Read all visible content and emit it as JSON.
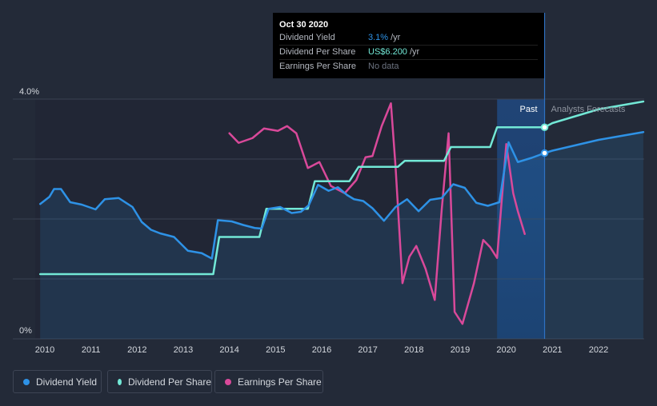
{
  "tooltip": {
    "date": "Oct 30 2020",
    "rows": [
      {
        "label": "Dividend Yield",
        "value": "3.1%",
        "unit": "/yr"
      },
      {
        "label": "Dividend Per Share",
        "value": "US$6.200",
        "unit": "/yr"
      },
      {
        "label": "Earnings Per Share",
        "value": "No data",
        "unit": ""
      }
    ]
  },
  "legend": [
    {
      "label": "Dividend Yield",
      "color": "#2e92e6"
    },
    {
      "label": "Dividend Per Share",
      "color": "#72e8d6"
    },
    {
      "label": "Earnings Per Share",
      "color": "#d9499a"
    }
  ],
  "chart_data": {
    "type": "line",
    "y_tick_labels": [
      "4.0%",
      "0%"
    ],
    "x_tick_labels": [
      "2010",
      "2011",
      "2012",
      "2013",
      "2014",
      "2015",
      "2016",
      "2017",
      "2018",
      "2019",
      "2020",
      "2021",
      "2022"
    ],
    "region_labels": {
      "past": "Past",
      "forecast": "Analysts Forecasts"
    },
    "ylim": [
      0,
      4.0
    ],
    "grid": true,
    "legend_position": "bottom-left",
    "colors": {
      "yield": "#2e92e6",
      "dps": "#72e8d6",
      "eps": "#d9499a"
    },
    "series": [
      {
        "name": "Dividend Yield",
        "unit": "%",
        "points": [
          [
            2009.9,
            2.25
          ],
          [
            2010.1,
            2.37
          ],
          [
            2010.2,
            2.5
          ],
          [
            2010.35,
            2.5
          ],
          [
            2010.55,
            2.28
          ],
          [
            2010.8,
            2.24
          ],
          [
            2011.1,
            2.16
          ],
          [
            2011.3,
            2.33
          ],
          [
            2011.6,
            2.35
          ],
          [
            2011.9,
            2.2
          ],
          [
            2012.1,
            1.95
          ],
          [
            2012.3,
            1.82
          ],
          [
            2012.5,
            1.76
          ],
          [
            2012.8,
            1.7
          ],
          [
            2013.1,
            1.47
          ],
          [
            2013.4,
            1.43
          ],
          [
            2013.62,
            1.34
          ],
          [
            2013.75,
            1.98
          ],
          [
            2014.05,
            1.96
          ],
          [
            2014.3,
            1.9
          ],
          [
            2014.55,
            1.85
          ],
          [
            2014.7,
            1.84
          ],
          [
            2014.85,
            2.17
          ],
          [
            2015.1,
            2.2
          ],
          [
            2015.35,
            2.1
          ],
          [
            2015.55,
            2.12
          ],
          [
            2015.72,
            2.23
          ],
          [
            2015.92,
            2.57
          ],
          [
            2016.15,
            2.47
          ],
          [
            2016.35,
            2.53
          ],
          [
            2016.55,
            2.4
          ],
          [
            2016.7,
            2.33
          ],
          [
            2016.9,
            2.3
          ],
          [
            2017.1,
            2.18
          ],
          [
            2017.35,
            1.97
          ],
          [
            2017.6,
            2.2
          ],
          [
            2017.85,
            2.33
          ],
          [
            2018.1,
            2.13
          ],
          [
            2018.35,
            2.32
          ],
          [
            2018.6,
            2.35
          ],
          [
            2018.85,
            2.58
          ],
          [
            2019.1,
            2.52
          ],
          [
            2019.35,
            2.27
          ],
          [
            2019.6,
            2.22
          ],
          [
            2019.85,
            2.28
          ],
          [
            2020.05,
            3.28
          ],
          [
            2020.25,
            2.95
          ],
          [
            2020.55,
            3.02
          ],
          [
            2020.83,
            3.1
          ],
          [
            2021.0,
            3.14
          ],
          [
            2022.0,
            3.32
          ],
          [
            2022.97,
            3.45
          ]
        ]
      },
      {
        "name": "Dividend Per Share",
        "unit": "US$",
        "points": [
          [
            2009.9,
            1.08
          ],
          [
            2013.65,
            1.08
          ],
          [
            2013.78,
            1.7
          ],
          [
            2014.65,
            1.7
          ],
          [
            2014.8,
            2.17
          ],
          [
            2015.7,
            2.17
          ],
          [
            2015.85,
            2.63
          ],
          [
            2016.6,
            2.63
          ],
          [
            2016.8,
            2.87
          ],
          [
            2017.65,
            2.87
          ],
          [
            2017.8,
            2.97
          ],
          [
            2018.65,
            2.97
          ],
          [
            2018.8,
            3.2
          ],
          [
            2019.65,
            3.2
          ],
          [
            2019.8,
            3.53
          ],
          [
            2020.83,
            3.53
          ],
          [
            2021.0,
            3.6
          ],
          [
            2022.0,
            3.83
          ],
          [
            2022.97,
            3.96
          ]
        ]
      },
      {
        "name": "Earnings Per Share",
        "unit": "US$",
        "points": [
          [
            2014.0,
            3.43
          ],
          [
            2014.2,
            3.27
          ],
          [
            2014.5,
            3.35
          ],
          [
            2014.75,
            3.51
          ],
          [
            2015.05,
            3.47
          ],
          [
            2015.25,
            3.55
          ],
          [
            2015.45,
            3.43
          ],
          [
            2015.7,
            2.85
          ],
          [
            2015.95,
            2.95
          ],
          [
            2016.2,
            2.55
          ],
          [
            2016.5,
            2.43
          ],
          [
            2016.75,
            2.65
          ],
          [
            2016.95,
            3.03
          ],
          [
            2017.1,
            3.05
          ],
          [
            2017.3,
            3.55
          ],
          [
            2017.5,
            3.93
          ],
          [
            2017.6,
            2.88
          ],
          [
            2017.75,
            0.93
          ],
          [
            2017.9,
            1.37
          ],
          [
            2018.05,
            1.55
          ],
          [
            2018.25,
            1.17
          ],
          [
            2018.45,
            0.65
          ],
          [
            2018.6,
            2.15
          ],
          [
            2018.75,
            3.43
          ],
          [
            2018.88,
            0.45
          ],
          [
            2019.05,
            0.25
          ],
          [
            2019.3,
            0.93
          ],
          [
            2019.5,
            1.65
          ],
          [
            2019.65,
            1.53
          ],
          [
            2019.8,
            1.35
          ],
          [
            2020.0,
            3.25
          ],
          [
            2020.15,
            2.43
          ],
          [
            2020.25,
            2.13
          ],
          [
            2020.4,
            1.75
          ]
        ]
      }
    ],
    "highlight": {
      "x": 2020.83,
      "yield": 3.1,
      "dps": 3.53
    }
  }
}
